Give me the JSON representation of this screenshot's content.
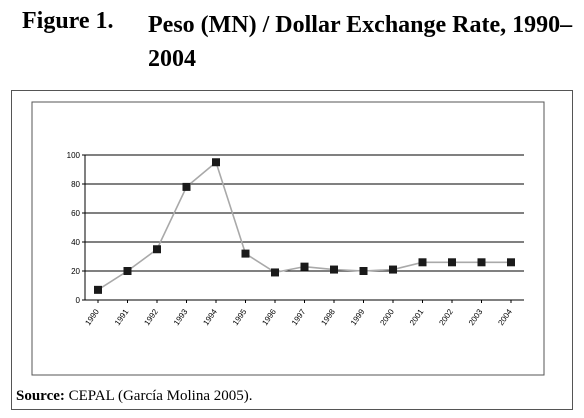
{
  "figure": {
    "label": "Figure 1.",
    "title": "Peso (MN) / Dollar Exchange Rate, 1990–2004"
  },
  "source": {
    "prefix": "Source:",
    "text": " CEPAL (García Molina 2005)."
  },
  "chart_data": {
    "type": "line",
    "title": "Peso (MN) / Dollar Exchange Rate, 1990–2004",
    "xlabel": "",
    "ylabel": "",
    "categories": [
      "1990",
      "1991",
      "1992",
      "1993",
      "1994",
      "1995",
      "1996",
      "1997",
      "1998",
      "1999",
      "2000",
      "2001",
      "2002",
      "2003",
      "2004"
    ],
    "series": [
      {
        "values": [
          7,
          20,
          35,
          78,
          95,
          32,
          19,
          23,
          21,
          20,
          21,
          26,
          26,
          26,
          26
        ]
      }
    ],
    "ylim": [
      0,
      100
    ],
    "yticks": [
      0,
      20,
      40,
      60,
      80,
      100
    ],
    "grid": true,
    "legend": "none",
    "colors": {
      "line": "#a9a9a9",
      "marker": "#1a1a1a",
      "grid": "#000000"
    }
  }
}
